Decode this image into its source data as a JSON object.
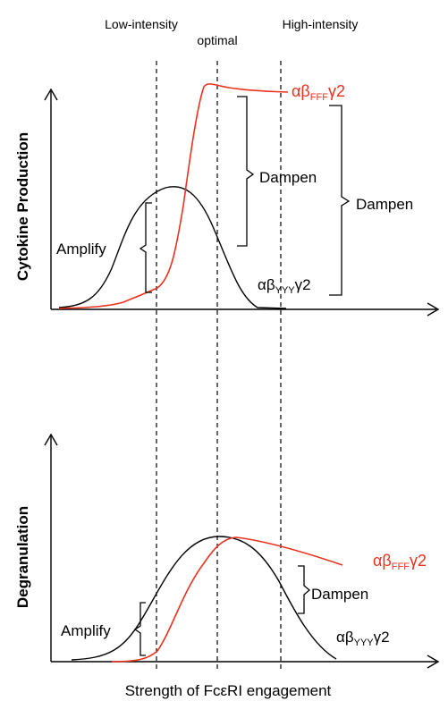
{
  "regions": {
    "low": "Low-intensity",
    "optimal": "optimal",
    "high": "High-intensity"
  },
  "top_panel": {
    "ylabel": "Cytokine Production",
    "amplify": "Amplify",
    "dampen_inner": "Dampen",
    "dampen_outer": "Dampen",
    "red_curve_label": {
      "base": "αβ",
      "sub": "FFF",
      "tail": "γ2"
    },
    "black_curve_label": {
      "base": "αβ",
      "sub": "YYY",
      "tail": "γ2"
    }
  },
  "bottom_panel": {
    "ylabel": "Degranulation",
    "amplify": "Amplify",
    "dampen": "Dampen",
    "red_curve_label": {
      "base": "αβ",
      "sub": "FFF",
      "tail": "γ2"
    },
    "black_curve_label": {
      "base": "αβ",
      "sub": "YYY",
      "tail": "γ2"
    }
  },
  "xlabel": "Strength of FcεRI engagement",
  "colors": {
    "red_series": "#e8321e",
    "black_series": "#000000"
  }
}
